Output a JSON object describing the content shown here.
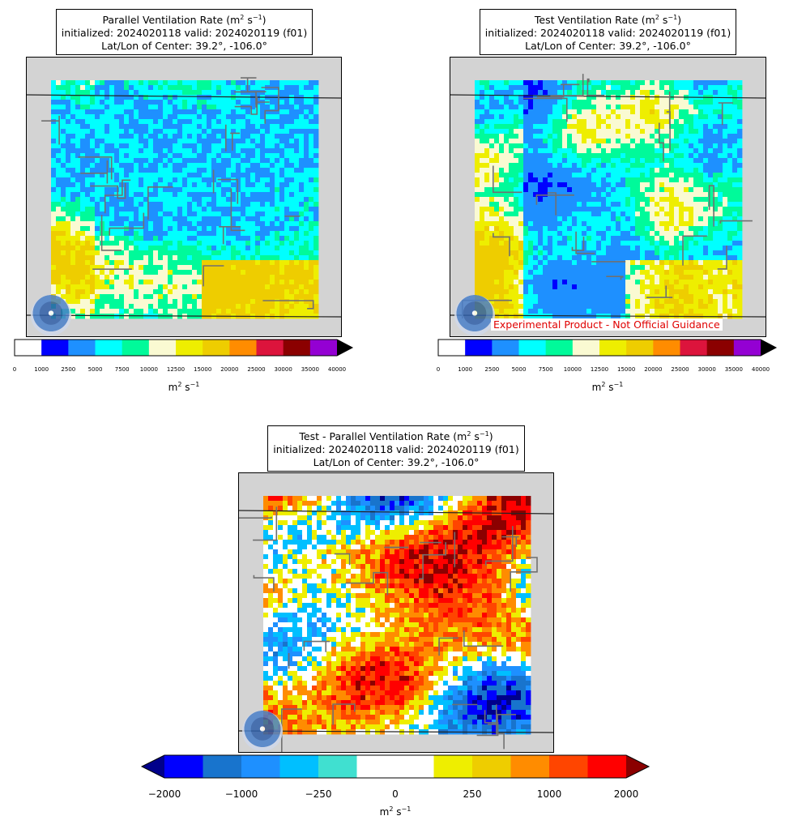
{
  "panels": [
    {
      "id": "parallel",
      "title": {
        "line1_prefix": "Parallel Ventilation Rate (m",
        "line1_unit_sup1": "2",
        "line1_mid": " s",
        "line1_unit_sup2": "−1",
        "line1_suffix": ")",
        "line2": "initialized: 2024020118 valid: 2024020119 (f01)",
        "line3": "Lat/Lon of Center: 39.2°, -106.0°"
      },
      "colorbar": {
        "ticks": [
          "0",
          "1000",
          "2500",
          "5000",
          "7500",
          "10000",
          "12500",
          "15000",
          "20000",
          "25000",
          "30000",
          "35000",
          "40000"
        ],
        "colors": [
          "#ffffff",
          "#0000ff",
          "#1e90ff",
          "#00ffff",
          "#00fa9a",
          "#fafad2",
          "#eeee00",
          "#eecd00",
          "#ff8c00",
          "#dc143c",
          "#8b0000",
          "#9400d3"
        ],
        "extend_color": "#000000",
        "label_base": "m",
        "label_sup1": "2",
        "label_mid": " s",
        "label_sup2": "−1"
      }
    },
    {
      "id": "test",
      "title": {
        "line1_prefix": "Test Ventilation Rate (m",
        "line1_unit_sup1": "2",
        "line1_mid": " s",
        "line1_unit_sup2": "−1",
        "line1_suffix": ")",
        "line2": "initialized: 2024020118 valid: 2024020119 (f01)",
        "line3": "Lat/Lon of Center: 39.2°, -106.0°"
      },
      "watermark": "Experimental Product - Not Official Guidance",
      "colorbar": {
        "ticks": [
          "0",
          "1000",
          "2500",
          "5000",
          "7500",
          "10000",
          "12500",
          "15000",
          "20000",
          "25000",
          "30000",
          "35000",
          "40000"
        ],
        "colors": [
          "#ffffff",
          "#0000ff",
          "#1e90ff",
          "#00ffff",
          "#00fa9a",
          "#fafad2",
          "#eeee00",
          "#eecd00",
          "#ff8c00",
          "#dc143c",
          "#8b0000",
          "#9400d3"
        ],
        "extend_color": "#000000",
        "label_base": "m",
        "label_sup1": "2",
        "label_mid": " s",
        "label_sup2": "−1"
      }
    },
    {
      "id": "difference",
      "title": {
        "line1_prefix": "Test - Parallel Ventilation Rate (m",
        "line1_unit_sup1": "2",
        "line1_mid": " s",
        "line1_unit_sup2": "−1",
        "line1_suffix": ")",
        "line2": "initialized: 2024020118 valid: 2024020119 (f01)",
        "line3": "Lat/Lon of Center: 39.2°, -106.0°"
      },
      "colorbar": {
        "ticks": [
          "−2000",
          "−1000",
          "−250",
          "0",
          "250",
          "1000",
          "2000"
        ],
        "colors": [
          "#0000ff",
          "#1874cd",
          "#1e90ff",
          "#00bfff",
          "#40e0d0",
          "#ffffff",
          "#ffffff",
          "#eeee00",
          "#eecd00",
          "#ff8c00",
          "#ff4500",
          "#ff0000"
        ],
        "extend_low_color": "#00008b",
        "extend_high_color": "#8b0000",
        "label_base": "m",
        "label_sup1": "2",
        "label_mid": " s",
        "label_sup2": "−1"
      }
    }
  ],
  "chart_data": [
    {
      "type": "heatmap",
      "title": "Parallel Ventilation Rate (m2 s−1)",
      "subtitle": "initialized: 2024020118 valid: 2024020119 (f01) / Lat/Lon of Center: 39.2°, -106.0°",
      "colorbar_levels": [
        0,
        1000,
        2500,
        5000,
        7500,
        10000,
        12500,
        15000,
        20000,
        25000,
        30000,
        35000,
        40000
      ],
      "colorbar_label": "m2 s−1",
      "extend": "max"
    },
    {
      "type": "heatmap",
      "title": "Test Ventilation Rate (m2 s−1)",
      "subtitle": "initialized: 2024020118 valid: 2024020119 (f01) / Lat/Lon of Center: 39.2°, -106.0°",
      "colorbar_levels": [
        0,
        1000,
        2500,
        5000,
        7500,
        10000,
        12500,
        15000,
        20000,
        25000,
        30000,
        35000,
        40000
      ],
      "colorbar_label": "m2 s−1",
      "extend": "max"
    },
    {
      "type": "heatmap",
      "title": "Test - Parallel Ventilation Rate (m2 s−1)",
      "subtitle": "initialized: 2024020118 valid: 2024020119 (f01) / Lat/Lon of Center: 39.2°, -106.0°",
      "colorbar_ticks": [
        -2000,
        -1000,
        -250,
        0,
        250,
        1000,
        2000
      ],
      "colorbar_label": "m2 s−1",
      "extend": "both"
    }
  ]
}
